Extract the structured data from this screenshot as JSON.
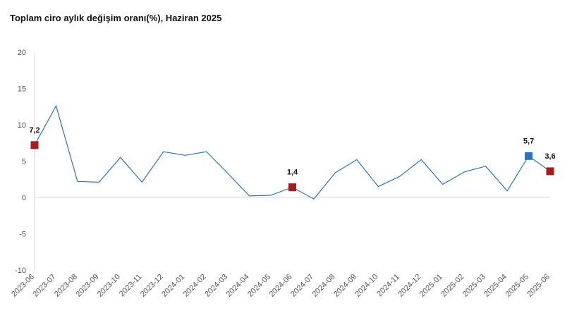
{
  "chart_data": {
    "type": "line",
    "title": "Toplam ciro aylık değişim oranı(%), Haziran 2025",
    "xlabel": "",
    "ylabel": "",
    "ylim": [
      -10,
      20
    ],
    "yticks": [
      "20",
      "15",
      "10",
      "5",
      "0",
      "-5",
      "-10"
    ],
    "grid": false,
    "categories": [
      "2023-06",
      "2023-07",
      "2023-08",
      "2023-09",
      "2023-10",
      "2023-11",
      "2023-12",
      "2024-01",
      "2024-02",
      "2024-03",
      "2024-04",
      "2024-05",
      "2024-06",
      "2024-07",
      "2024-08",
      "2024-09",
      "2024-10",
      "2024-11",
      "2024-12",
      "2025-01",
      "2025-02",
      "2025-03",
      "2025-04",
      "2025-05",
      "2025-06"
    ],
    "series": [
      {
        "values": [
          7.2,
          12.6,
          2.2,
          2.1,
          5.5,
          2.1,
          6.3,
          5.8,
          6.3,
          3.3,
          0.2,
          0.3,
          1.4,
          -0.2,
          3.4,
          5.2,
          1.5,
          2.9,
          5.2,
          1.8,
          3.5,
          4.3,
          0.9,
          5.7,
          3.6
        ],
        "color": "#2e75b6"
      }
    ],
    "highlights": [
      {
        "index": 0,
        "label": "7,2",
        "color": "#a61c1c"
      },
      {
        "index": 12,
        "label": "1,4",
        "color": "#a61c1c"
      },
      {
        "index": 23,
        "label": "5,7",
        "color": "#2e75b6"
      },
      {
        "index": 24,
        "label": "3,6",
        "color": "#a61c1c"
      }
    ]
  }
}
